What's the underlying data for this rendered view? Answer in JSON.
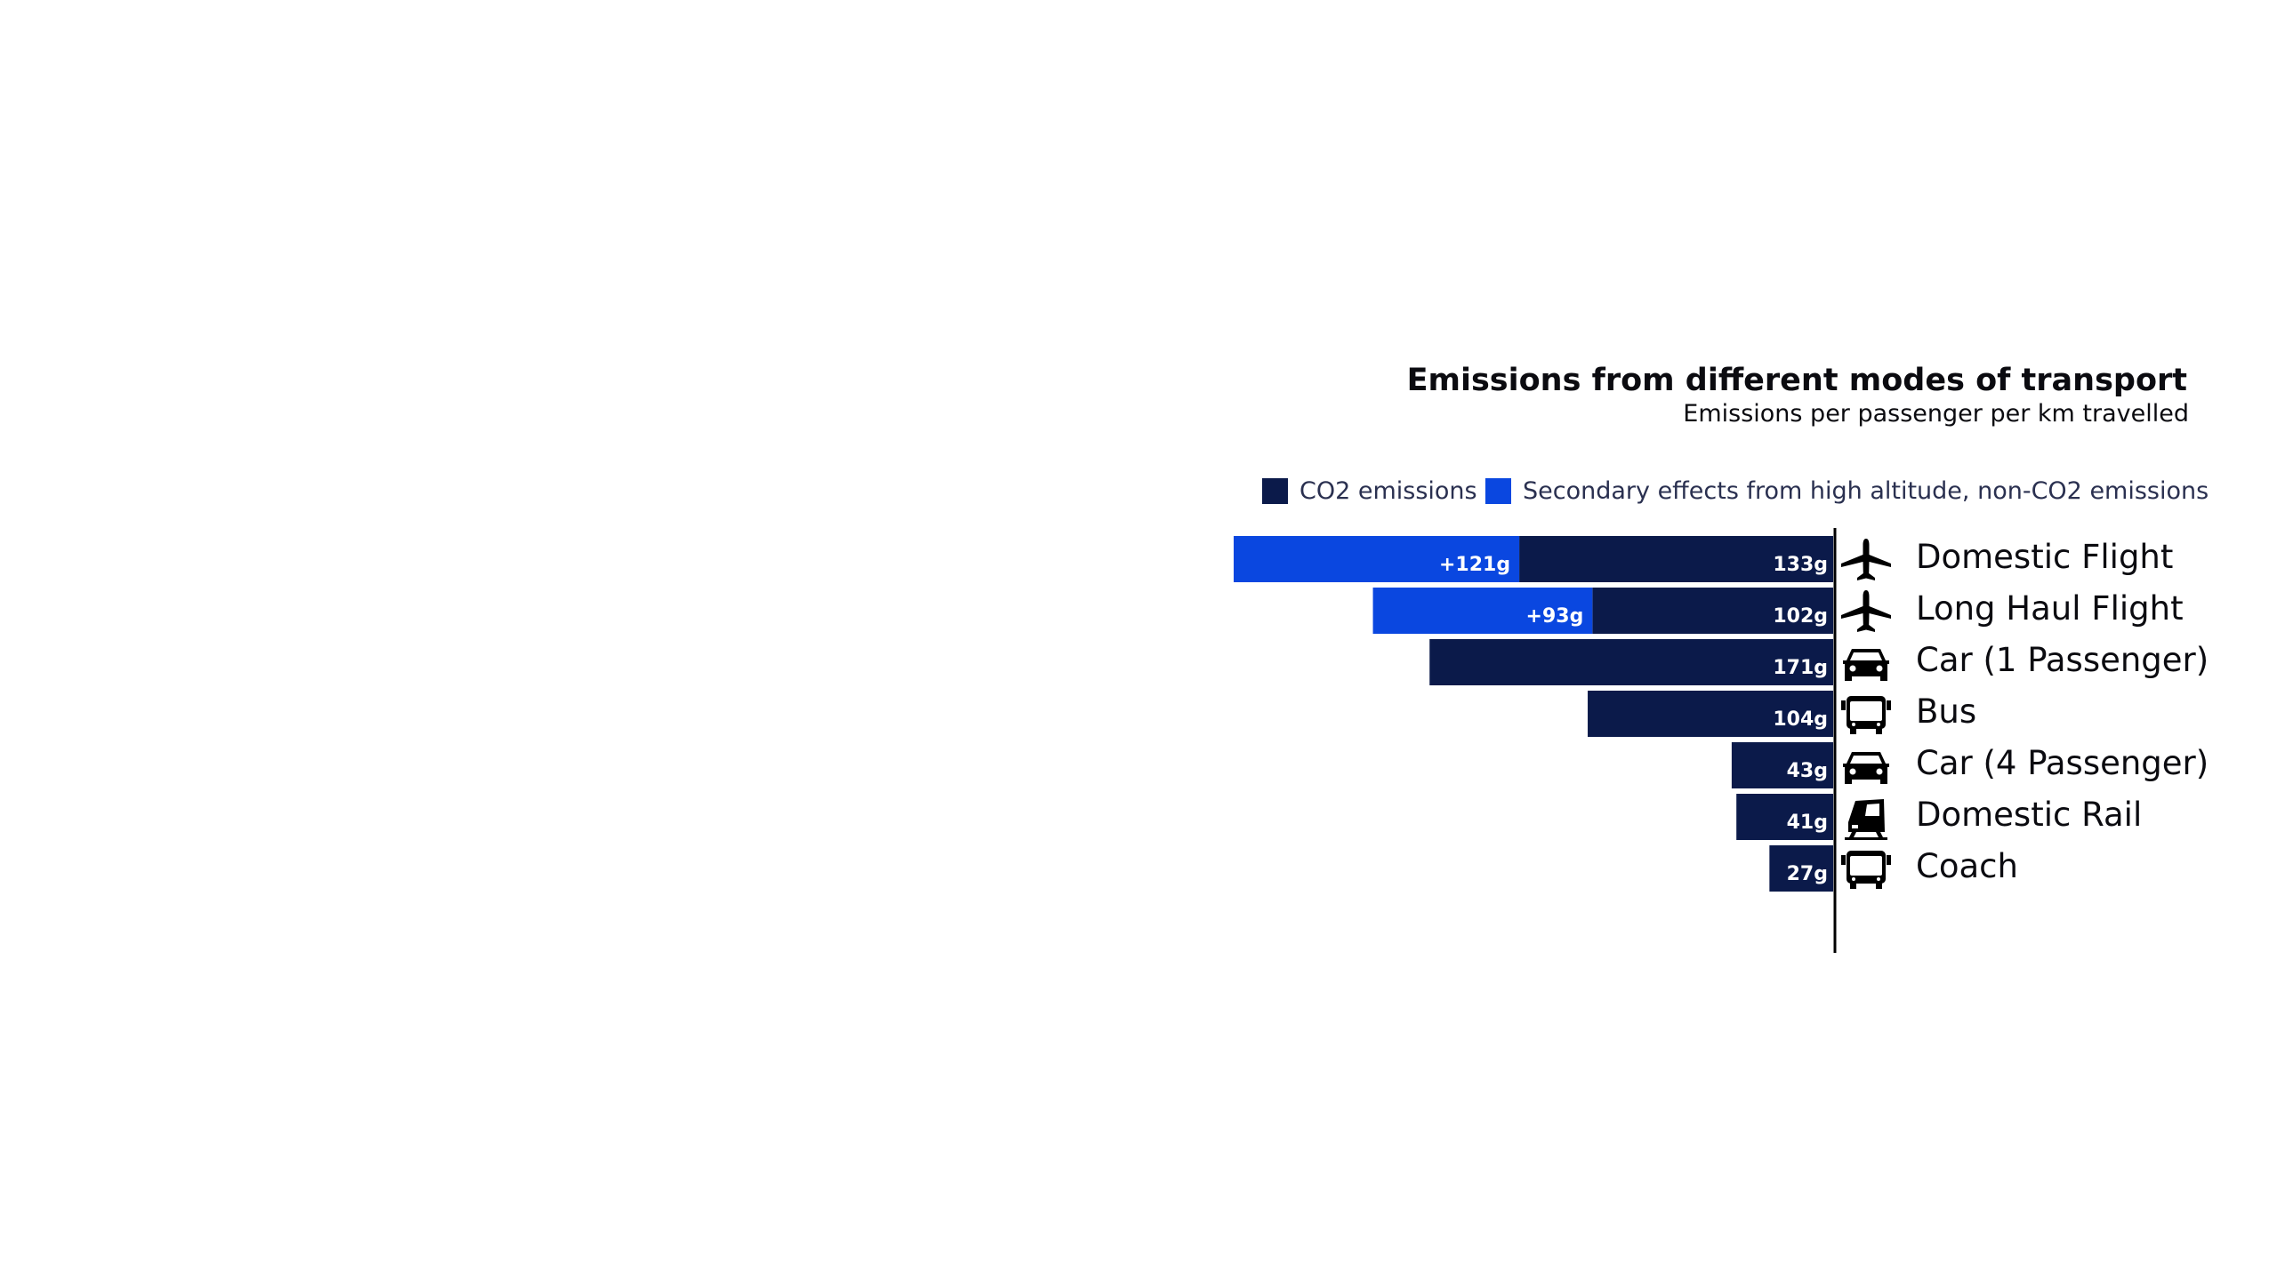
{
  "chart_data": {
    "type": "bar",
    "orientation": "horizontal-diverging-left",
    "title": "Emissions from different modes of transport",
    "subtitle": "Emissions per passenger per km travelled",
    "xlabel": "",
    "ylabel": "",
    "xlim": [
      0,
      254
    ],
    "grid": false,
    "legend_position": "top-right",
    "categories": [
      "Domestic Flight",
      "Long Haul Flight",
      "Car (1 Passenger)",
      "Bus",
      "Car (4 Passenger)",
      "Domestic Rail",
      "Coach"
    ],
    "category_icons": [
      "airplane-icon",
      "airplane-icon",
      "car-icon",
      "bus-icon",
      "car-icon",
      "train-icon",
      "bus-icon"
    ],
    "series": [
      {
        "name": "CO2 emissions",
        "color": "#0b1a4a",
        "values": [
          133,
          102,
          171,
          104,
          43,
          41,
          27
        ],
        "labels": [
          "133g",
          "102g",
          "171g",
          "104g",
          "43g",
          "41g",
          "27g"
        ]
      },
      {
        "name": "Secondary effects from high altitude, non-CO2 emissions",
        "color": "#0a47e0",
        "values": [
          121,
          93,
          0,
          0,
          0,
          0,
          0
        ],
        "labels": [
          "+121g",
          "+93g",
          "",
          "",
          "",
          "",
          ""
        ]
      }
    ]
  }
}
